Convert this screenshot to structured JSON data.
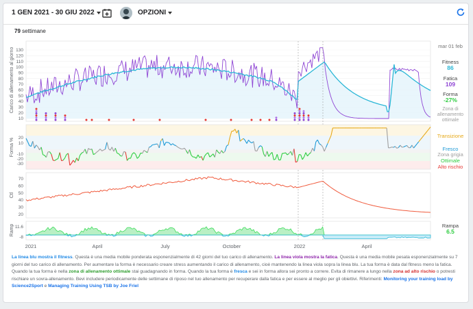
{
  "toolbar": {
    "date_range": "1 GEN 2021 - 30 GIU 2022",
    "options": "OPZIONI"
  },
  "weeks": {
    "count": "79",
    "label": "settimane"
  },
  "legend": {
    "date": "mar 01 feb",
    "fitness_label": "Fitness",
    "fitness_value": "86",
    "fatigue_label": "Fatica",
    "fatigue_value": "109",
    "form_label": "Forma",
    "form_value": "-27%",
    "optimal_zone": "Zona di allenamento ottimale",
    "transition": "Transizione",
    "fresh": "Fresco",
    "grey_zone": "Zona grigia",
    "optimal": "Ottimale",
    "high_risk": "Alto rischio",
    "ramp_label": "Rampa",
    "ramp_value": "6.5"
  },
  "colors": {
    "fitness": "#29b6d6",
    "fatigue": "#8e44d4",
    "ctl": "#f05a3c",
    "ramp": "#3ddc5a",
    "optimal": "#2ecc40",
    "risk": "#e53935",
    "transition": "#e6a817",
    "fresh": "#1e9ad6"
  },
  "chart_data": {
    "type": "line",
    "x_ticks": [
      "2021",
      "April",
      "July",
      "October",
      "2022",
      "April"
    ],
    "panels": [
      {
        "name": "load",
        "ylabel": "Carico di allenamento al giorno",
        "y_ticks": [
          "130",
          "120",
          "110",
          "100",
          "90",
          "80",
          "70",
          "60",
          "50",
          "40",
          "30",
          "20",
          "10"
        ]
      },
      {
        "name": "form",
        "ylabel": "Forma %",
        "y_ticks": [
          "20",
          "10",
          "-10",
          "-20",
          "-30"
        ]
      },
      {
        "name": "ctl",
        "ylabel": "Ctl",
        "y_ticks": [
          "70",
          "60",
          "50",
          "40",
          "30",
          "20"
        ]
      },
      {
        "name": "ramp",
        "ylabel": "Ramp",
        "y_ticks": [
          "11.6",
          "-8"
        ]
      }
    ]
  },
  "desc": {
    "p1": "La linea blu mostra il fitness",
    "p2": ". Questa è una media mobile ponderata esponenzialmente di 42 giorni del tuo carico di allenamento. ",
    "p3": "La linea viola mostra la fatica",
    "p4": ". Questa è una media mobile pesata esponenzialmente su 7 giorni del tuo carico di allenamento. Per aumentare la forma è necessario creare stress aumentando il carico di allenamento, cioè mantenendo la linea viola sopra la linea blu. La tua forma è data dal fitness meno la fatica. Quando la tua forma è nella ",
    "p5": "zona di allenamento ottimale",
    "p6": " stai guadagnando in forma. Quando la tua forma è ",
    "p7": "fresca",
    "p8": " e sei in forma allora sei pronto a correre. Evita di rimanere a lungo nella ",
    "p9": "zona ad alto rischio",
    "p10": " o potresti rischiare un sovra-allenamento. Bevi includere periodicamente delle settimane di riposo nel tuo allenamento per recuperare dalla fatica e per essere al meglio per gli obiettivi. Riferimenti: ",
    "link1": "Monitoring your training load by Science2Sport",
    "p11": " e ",
    "link2": "Managing Training Using TSB by Joe Friel"
  }
}
